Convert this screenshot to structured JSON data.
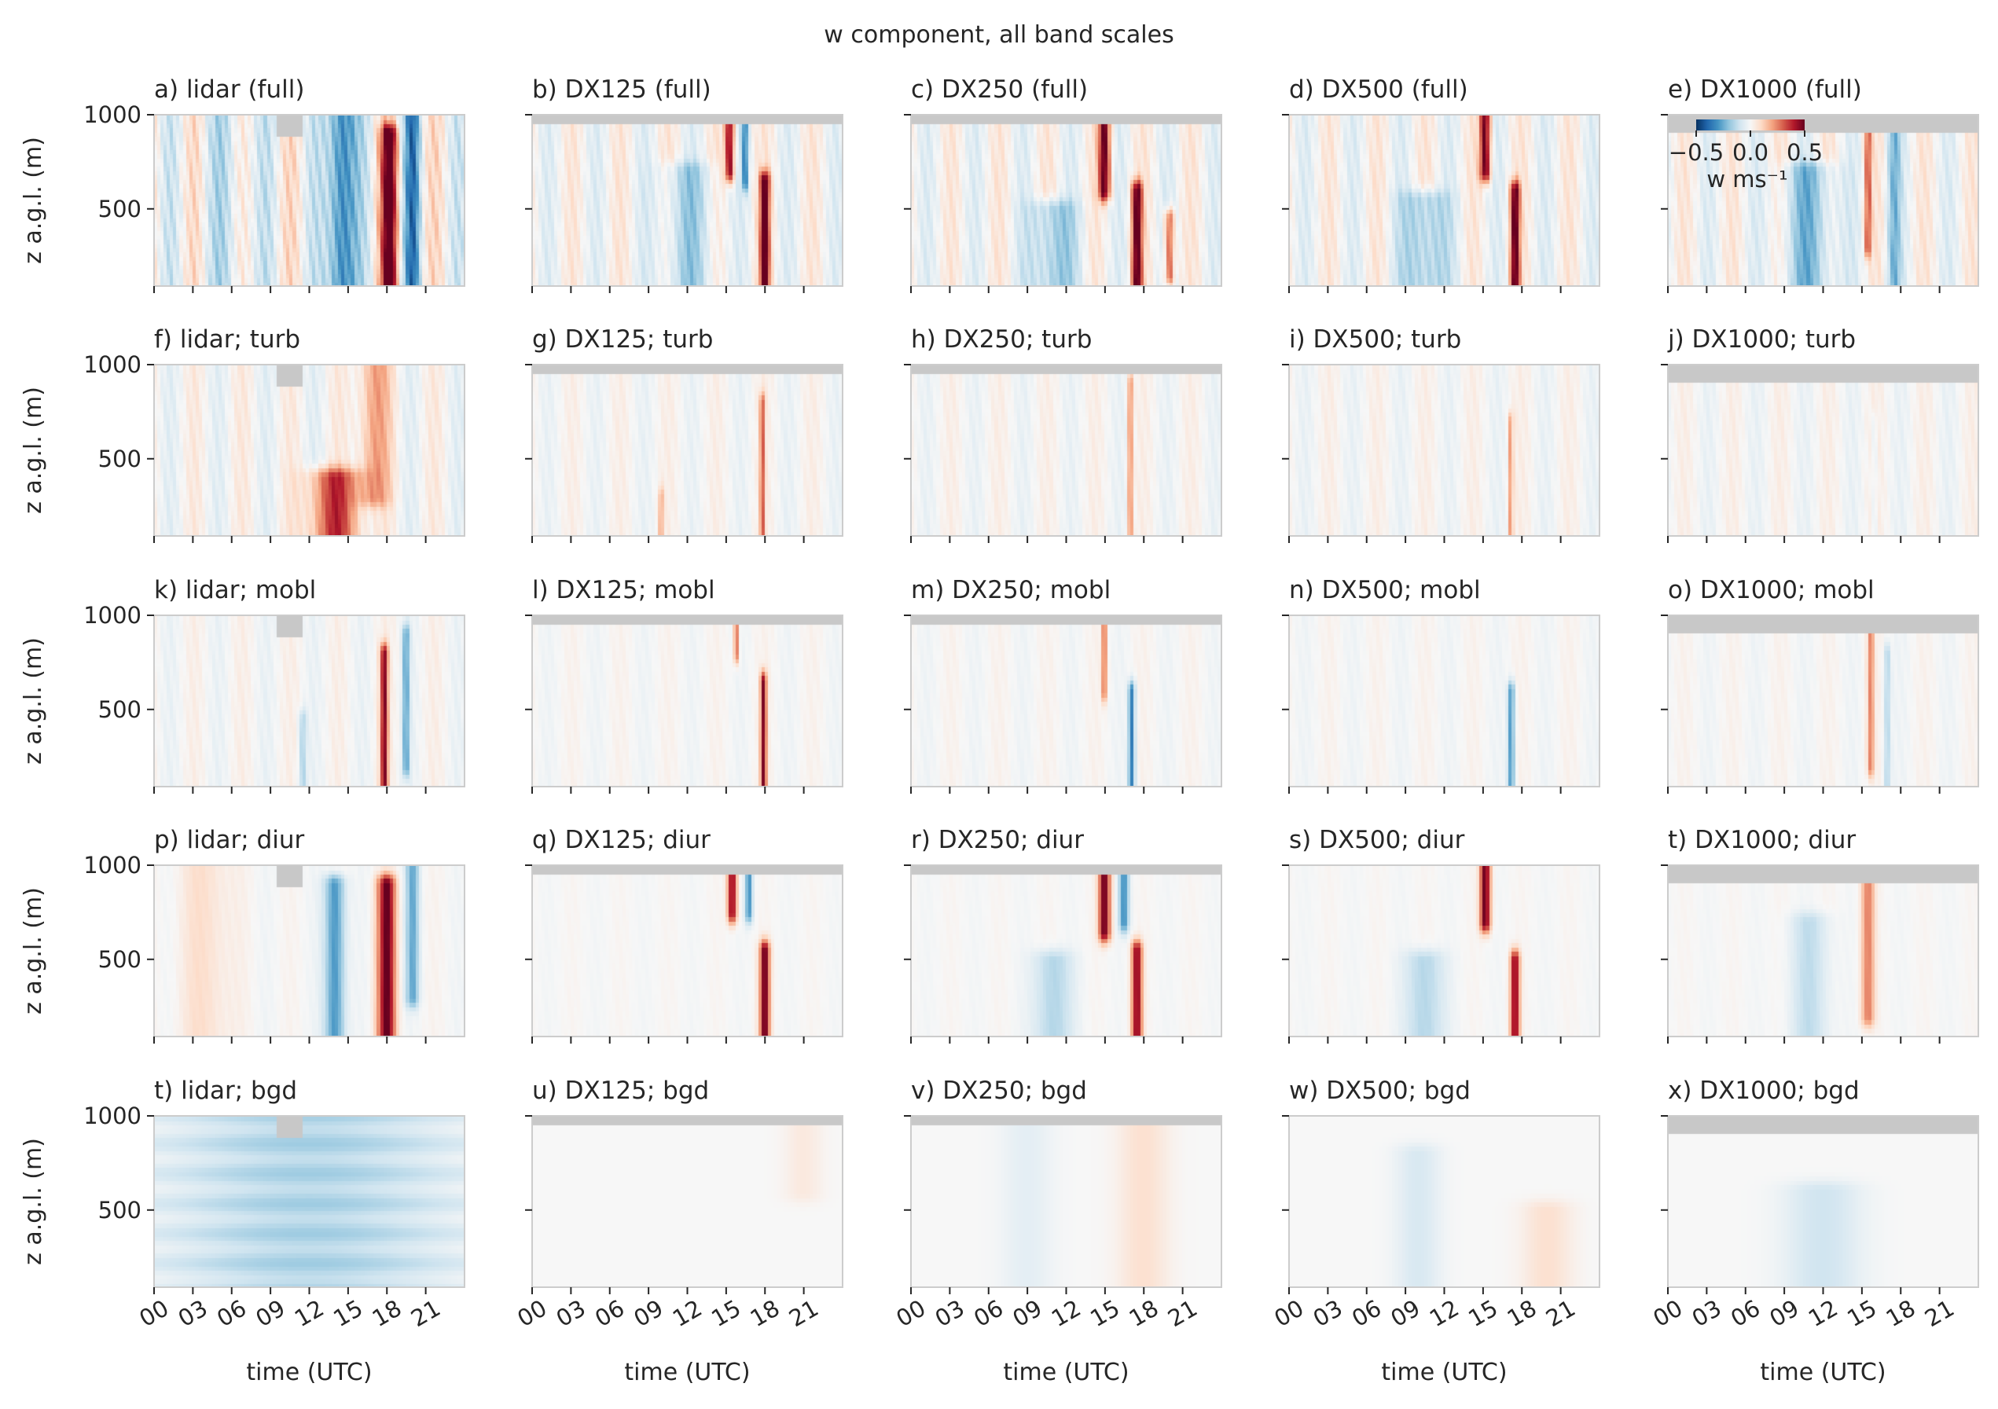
{
  "figure": {
    "title": "w component, all band scales",
    "ylabel": "z a.g.l. (m)",
    "xlabel": "time (UTC)",
    "colors": {
      "negative": "#053061",
      "positive": "#67001f",
      "neutral": "#f5f5f5",
      "missing": "#c8c8c8",
      "frame": "#cccccc"
    }
  },
  "chart_data": {
    "type": "heatmap",
    "variable": "w",
    "colormap": "RdBu_r",
    "colorbar": {
      "label": "w ms⁻¹",
      "ticks": [
        "−0.5",
        "0.0",
        "0.5"
      ],
      "range": [
        -0.5,
        0.5
      ],
      "placement": "inside panel e, top-left"
    },
    "x_ticks": [
      "00",
      "03",
      "06",
      "09",
      "12",
      "15",
      "18",
      "21"
    ],
    "xlim": [
      0,
      24
    ],
    "y_ticks": [
      "500",
      "1000"
    ],
    "ylim": [
      90,
      1000
    ],
    "grid": false,
    "columns": [
      "lidar",
      "DX125",
      "DX250",
      "DX500",
      "DX1000"
    ],
    "rows": [
      "full",
      "turb",
      "mobl",
      "diur",
      "bgd"
    ],
    "panels": [
      {
        "title": "a) lidar (full)",
        "source": "lidar",
        "band": "full"
      },
      {
        "title": "b) DX125 (full)",
        "source": "DX125",
        "band": "full"
      },
      {
        "title": "c) DX250 (full)",
        "source": "DX250",
        "band": "full"
      },
      {
        "title": "d) DX500 (full)",
        "source": "DX500",
        "band": "full"
      },
      {
        "title": "e) DX1000 (full)",
        "source": "DX1000",
        "band": "full"
      },
      {
        "title": "f) lidar; turb",
        "source": "lidar",
        "band": "turb"
      },
      {
        "title": "g) DX125; turb",
        "source": "DX125",
        "band": "turb"
      },
      {
        "title": "h) DX250; turb",
        "source": "DX250",
        "band": "turb"
      },
      {
        "title": "i) DX500; turb",
        "source": "DX500",
        "band": "turb"
      },
      {
        "title": "j) DX1000; turb",
        "source": "DX1000",
        "band": "turb"
      },
      {
        "title": "k) lidar; mobl",
        "source": "lidar",
        "band": "mobl"
      },
      {
        "title": "l) DX125; mobl",
        "source": "DX125",
        "band": "mobl"
      },
      {
        "title": "m) DX250; mobl",
        "source": "DX250",
        "band": "mobl"
      },
      {
        "title": "n) DX500; mobl",
        "source": "DX500",
        "band": "mobl"
      },
      {
        "title": "o) DX1000; mobl",
        "source": "DX1000",
        "band": "mobl"
      },
      {
        "title": "p) lidar; diur",
        "source": "lidar",
        "band": "diur"
      },
      {
        "title": "q) DX125; diur",
        "source": "DX125",
        "band": "diur"
      },
      {
        "title": "r) DX250; diur",
        "source": "DX250",
        "band": "diur"
      },
      {
        "title": "s) DX500; diur",
        "source": "DX500",
        "band": "diur"
      },
      {
        "title": "t) DX1000; diur",
        "source": "DX1000",
        "band": "diur"
      },
      {
        "title": "t) lidar; bgd",
        "source": "lidar",
        "band": "bgd"
      },
      {
        "title": "u) DX125; bgd",
        "source": "DX125",
        "band": "bgd"
      },
      {
        "title": "v) DX250; bgd",
        "source": "DX250",
        "band": "bgd"
      },
      {
        "title": "w) DX500; bgd",
        "source": "DX500",
        "band": "bgd"
      },
      {
        "title": "x) DX1000; bgd",
        "source": "DX1000",
        "band": "bgd"
      }
    ],
    "features": {
      "lidar": {
        "full": [
          {
            "t": 14.5,
            "dt": 2.2,
            "zb": 90,
            "zt": 1000,
            "w": -0.4
          },
          {
            "t": 18.2,
            "dt": 1.3,
            "zb": 100,
            "zt": 900,
            "w": 0.5
          },
          {
            "t": 20.0,
            "dt": 1.2,
            "zb": 100,
            "zt": 1000,
            "w": -0.3
          },
          {
            "t": 6.0,
            "dt": 4.0,
            "zb": 90,
            "zt": 1000,
            "w": -0.08
          }
        ],
        "turb": [
          {
            "t": 14.0,
            "dt": 4.0,
            "zb": 90,
            "zt": 400,
            "w": 0.35
          },
          {
            "t": 17.0,
            "dt": 2.5,
            "zb": 300,
            "zt": 1000,
            "w": 0.2
          }
        ],
        "mobl": [
          {
            "t": 17.8,
            "dt": 0.6,
            "zb": 100,
            "zt": 800,
            "w": 0.45
          },
          {
            "t": 19.5,
            "dt": 0.5,
            "zb": 200,
            "zt": 900,
            "w": -0.25
          },
          {
            "t": 11.5,
            "dt": 0.6,
            "zb": 100,
            "zt": 450,
            "w": -0.15
          }
        ],
        "diur": [
          {
            "t": 18.0,
            "dt": 1.4,
            "zb": 100,
            "zt": 900,
            "w": 0.5
          },
          {
            "t": 14.0,
            "dt": 1.6,
            "zb": 100,
            "zt": 900,
            "w": -0.3
          },
          {
            "t": 20.0,
            "dt": 1.0,
            "zb": 300,
            "zt": 1000,
            "w": -0.25
          },
          {
            "t": 4.0,
            "dt": 4.0,
            "zb": 90,
            "zt": 1000,
            "w": 0.08
          }
        ],
        "bgd": [
          {
            "t": 12.0,
            "dt": 24.0,
            "zb": 90,
            "zt": 1000,
            "w": -0.15
          }
        ]
      },
      "DX125": {
        "full": [
          {
            "t": 18.0,
            "dt": 0.8,
            "zb": 90,
            "zt": 650,
            "w": 0.5
          },
          {
            "t": 15.3,
            "dt": 0.7,
            "zb": 700,
            "zt": 1000,
            "w": 0.45
          },
          {
            "t": 16.5,
            "dt": 0.5,
            "zb": 650,
            "zt": 1000,
            "w": -0.3
          },
          {
            "t": 12.0,
            "dt": 4.0,
            "zb": 90,
            "zt": 700,
            "w": -0.15
          }
        ],
        "turb": [
          {
            "t": 17.8,
            "dt": 0.4,
            "zb": 90,
            "zt": 800,
            "w": 0.3
          },
          {
            "t": 10.0,
            "dt": 0.3,
            "zb": 90,
            "zt": 300,
            "w": 0.25
          }
        ],
        "mobl": [
          {
            "t": 17.9,
            "dt": 0.5,
            "zb": 90,
            "zt": 650,
            "w": 0.45
          },
          {
            "t": 15.8,
            "dt": 0.4,
            "zb": 800,
            "zt": 1000,
            "w": 0.3
          }
        ],
        "diur": [
          {
            "t": 18.0,
            "dt": 0.8,
            "zb": 90,
            "zt": 550,
            "w": 0.5
          },
          {
            "t": 15.5,
            "dt": 0.7,
            "zb": 750,
            "zt": 1000,
            "w": 0.45
          },
          {
            "t": 16.8,
            "dt": 0.6,
            "zb": 750,
            "zt": 1000,
            "w": -0.3
          }
        ],
        "bgd": [
          {
            "t": 21.0,
            "dt": 3.0,
            "zb": 600,
            "zt": 1000,
            "w": 0.05
          }
        ]
      },
      "DX250": {
        "full": [
          {
            "t": 15.0,
            "dt": 0.9,
            "zb": 600,
            "zt": 1000,
            "w": 0.5
          },
          {
            "t": 17.5,
            "dt": 0.8,
            "zb": 90,
            "zt": 600,
            "w": 0.5
          },
          {
            "t": 20.0,
            "dt": 0.7,
            "zb": 150,
            "zt": 450,
            "w": 0.35
          },
          {
            "t": 11.0,
            "dt": 3.5,
            "zb": 90,
            "zt": 500,
            "w": -0.2
          }
        ],
        "turb": [
          {
            "t": 17.0,
            "dt": 0.3,
            "zb": 90,
            "zt": 900,
            "w": 0.35
          }
        ],
        "mobl": [
          {
            "t": 17.1,
            "dt": 0.5,
            "zb": 90,
            "zt": 600,
            "w": -0.35
          },
          {
            "t": 15.0,
            "dt": 0.4,
            "zb": 600,
            "zt": 1000,
            "w": 0.3
          }
        ],
        "diur": [
          {
            "t": 15.0,
            "dt": 0.9,
            "zb": 650,
            "zt": 1000,
            "w": 0.5
          },
          {
            "t": 17.5,
            "dt": 0.8,
            "zb": 90,
            "zt": 550,
            "w": 0.45
          },
          {
            "t": 16.5,
            "dt": 0.8,
            "zb": 700,
            "zt": 1000,
            "w": -0.3
          },
          {
            "t": 11.0,
            "dt": 3.0,
            "zb": 90,
            "zt": 500,
            "w": -0.15
          }
        ],
        "bgd": [
          {
            "t": 18.0,
            "dt": 4.0,
            "zb": 90,
            "zt": 1000,
            "w": 0.08
          },
          {
            "t": 9.0,
            "dt": 4.0,
            "zb": 90,
            "zt": 1000,
            "w": -0.05
          }
        ]
      },
      "DX500": {
        "full": [
          {
            "t": 15.2,
            "dt": 0.8,
            "zb": 700,
            "zt": 1000,
            "w": 0.5
          },
          {
            "t": 17.5,
            "dt": 0.7,
            "zb": 90,
            "zt": 600,
            "w": 0.5
          },
          {
            "t": 10.5,
            "dt": 3.5,
            "zb": 90,
            "zt": 550,
            "w": -0.2
          }
        ],
        "turb": [
          {
            "t": 17.2,
            "dt": 0.3,
            "zb": 90,
            "zt": 700,
            "w": 0.25
          }
        ],
        "mobl": [
          {
            "t": 17.2,
            "dt": 0.5,
            "zb": 90,
            "zt": 600,
            "w": -0.3
          }
        ],
        "diur": [
          {
            "t": 15.2,
            "dt": 0.8,
            "zb": 700,
            "zt": 1000,
            "w": 0.5
          },
          {
            "t": 17.5,
            "dt": 0.7,
            "zb": 90,
            "zt": 500,
            "w": 0.45
          },
          {
            "t": 10.5,
            "dt": 3.0,
            "zb": 90,
            "zt": 500,
            "w": -0.15
          }
        ],
        "bgd": [
          {
            "t": 10.0,
            "dt": 3.5,
            "zb": 90,
            "zt": 800,
            "w": -0.08
          },
          {
            "t": 20.0,
            "dt": 4.0,
            "zb": 90,
            "zt": 500,
            "w": 0.08
          }
        ]
      },
      "DX1000": {
        "full": [
          {
            "t": 11.0,
            "dt": 4.0,
            "zb": 90,
            "zt": 700,
            "w": -0.2
          },
          {
            "t": 15.5,
            "dt": 0.5,
            "zb": 300,
            "zt": 900,
            "w": 0.3
          },
          {
            "t": 17.5,
            "dt": 1.0,
            "zb": 90,
            "zt": 900,
            "w": -0.2
          }
        ],
        "turb": [
          {
            "t": 16.0,
            "dt": 0.4,
            "zb": 90,
            "zt": 700,
            "w": -0.06
          }
        ],
        "mobl": [
          {
            "t": 15.7,
            "dt": 0.5,
            "zb": 200,
            "zt": 900,
            "w": 0.25
          },
          {
            "t": 17.0,
            "dt": 0.5,
            "zb": 100,
            "zt": 800,
            "w": -0.15
          }
        ],
        "diur": [
          {
            "t": 15.5,
            "dt": 1.0,
            "zb": 200,
            "zt": 950,
            "w": 0.25
          },
          {
            "t": 11.0,
            "dt": 3.0,
            "zb": 100,
            "zt": 700,
            "w": -0.12
          }
        ],
        "bgd": [
          {
            "t": 12.0,
            "dt": 6.0,
            "zb": 90,
            "zt": 600,
            "w": -0.1
          }
        ]
      }
    },
    "missing_regions": [
      {
        "source": "lidar",
        "t0": 9.5,
        "t1": 11.5,
        "z0": 880,
        "z1": 1000
      },
      {
        "source": "DX125",
        "t0": 0,
        "t1": 24,
        "z0": 960,
        "z1": 1000
      },
      {
        "source": "DX250",
        "t0": 0,
        "t1": 24,
        "z0": 960,
        "z1": 1000
      },
      {
        "source": "DX500",
        "t0": 0,
        "t1": 24,
        "z0": 995,
        "z1": 1000
      },
      {
        "source": "DX1000",
        "t0": 0,
        "t1": 24,
        "z0": 905,
        "z1": 1000
      }
    ]
  }
}
